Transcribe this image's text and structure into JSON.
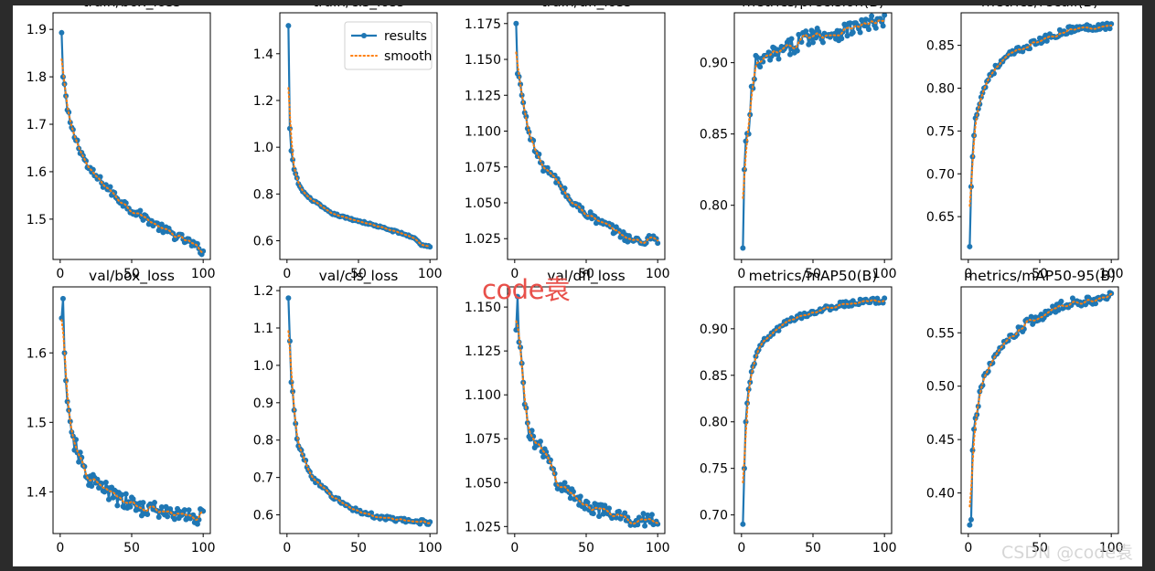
{
  "watermark": "code袁",
  "credit": "CSDN @code袁",
  "colors": {
    "results": "#1f77b4",
    "smooth": "#ff7f0e"
  },
  "legend": {
    "results_label": "results",
    "smooth_label": "smooth"
  },
  "chart_data": [
    {
      "type": "line",
      "title": "train/box_loss",
      "legend": false,
      "xlim": [
        -5,
        105
      ],
      "ylim": [
        1.415,
        1.935
      ],
      "xticks": [
        0,
        50,
        100
      ],
      "yticks": [
        1.5,
        1.6,
        1.7,
        1.8,
        1.9
      ],
      "x_range": [
        1,
        100
      ],
      "anchors": [
        [
          1,
          1.893
        ],
        [
          2,
          1.8
        ],
        [
          3,
          1.785
        ],
        [
          5,
          1.73
        ],
        [
          8,
          1.69
        ],
        [
          10,
          1.675
        ],
        [
          15,
          1.64
        ],
        [
          20,
          1.605
        ],
        [
          30,
          1.575
        ],
        [
          40,
          1.545
        ],
        [
          50,
          1.52
        ],
        [
          60,
          1.502
        ],
        [
          70,
          1.482
        ],
        [
          80,
          1.466
        ],
        [
          90,
          1.452
        ],
        [
          100,
          1.432
        ]
      ],
      "noise": 0.009
    },
    {
      "type": "line",
      "title": "train/cls_loss",
      "legend": true,
      "legend_position": "upper right",
      "xlim": [
        -5,
        105
      ],
      "ylim": [
        0.52,
        1.575
      ],
      "xticks": [
        0,
        50,
        100
      ],
      "yticks": [
        0.6,
        0.8,
        1.0,
        1.2,
        1.4
      ],
      "x_range": [
        1,
        100
      ],
      "anchors": [
        [
          1,
          1.52
        ],
        [
          2,
          1.08
        ],
        [
          3,
          0.985
        ],
        [
          5,
          0.905
        ],
        [
          8,
          0.845
        ],
        [
          10,
          0.82
        ],
        [
          15,
          0.785
        ],
        [
          20,
          0.765
        ],
        [
          30,
          0.72
        ],
        [
          40,
          0.7
        ],
        [
          50,
          0.685
        ],
        [
          60,
          0.668
        ],
        [
          70,
          0.65
        ],
        [
          80,
          0.632
        ],
        [
          90,
          0.61
        ],
        [
          93,
          0.585
        ],
        [
          100,
          0.575
        ]
      ],
      "noise": 0.004
    },
    {
      "type": "line",
      "title": "train/dfl_loss",
      "legend": false,
      "xlim": [
        -5,
        105
      ],
      "ylim": [
        1.0105,
        1.1825
      ],
      "xticks": [
        0,
        50,
        100
      ],
      "yticks": [
        1.025,
        1.05,
        1.075,
        1.1,
        1.125,
        1.15,
        1.175
      ],
      "x_range": [
        1,
        100
      ],
      "anchors": [
        [
          1,
          1.175
        ],
        [
          2,
          1.14
        ],
        [
          3,
          1.138
        ],
        [
          5,
          1.125
        ],
        [
          8,
          1.108
        ],
        [
          10,
          1.1
        ],
        [
          15,
          1.085
        ],
        [
          20,
          1.075
        ],
        [
          30,
          1.065
        ],
        [
          40,
          1.05
        ],
        [
          50,
          1.043
        ],
        [
          60,
          1.036
        ],
        [
          70,
          1.031
        ],
        [
          80,
          1.025
        ],
        [
          90,
          1.022
        ],
        [
          95,
          1.027
        ],
        [
          100,
          1.024
        ]
      ],
      "noise": 0.003
    },
    {
      "type": "line",
      "title": "metrics/precision(B)",
      "legend": false,
      "xlim": [
        -5,
        105
      ],
      "ylim": [
        0.762,
        0.935
      ],
      "xticks": [
        0,
        50,
        100
      ],
      "yticks": [
        0.8,
        0.85,
        0.9
      ],
      "x_range": [
        1,
        100
      ],
      "anchors": [
        [
          1,
          0.77
        ],
        [
          2,
          0.825
        ],
        [
          3,
          0.845
        ],
        [
          5,
          0.85
        ],
        [
          7,
          0.88
        ],
        [
          9,
          0.885
        ],
        [
          10,
          0.9
        ],
        [
          15,
          0.9
        ],
        [
          20,
          0.905
        ],
        [
          30,
          0.908
        ],
        [
          40,
          0.915
        ],
        [
          50,
          0.92
        ],
        [
          60,
          0.92
        ],
        [
          70,
          0.922
        ],
        [
          80,
          0.925
        ],
        [
          90,
          0.927
        ],
        [
          100,
          0.928
        ]
      ],
      "noise": 0.006
    },
    {
      "type": "line",
      "title": "metrics/recall(B)",
      "legend": false,
      "xlim": [
        -5,
        105
      ],
      "ylim": [
        0.6,
        0.888
      ],
      "xticks": [
        0,
        50,
        100
      ],
      "yticks": [
        0.65,
        0.7,
        0.75,
        0.8,
        0.85
      ],
      "x_range": [
        1,
        100
      ],
      "anchors": [
        [
          1,
          0.615
        ],
        [
          2,
          0.685
        ],
        [
          3,
          0.72
        ],
        [
          5,
          0.765
        ],
        [
          8,
          0.785
        ],
        [
          10,
          0.795
        ],
        [
          15,
          0.815
        ],
        [
          20,
          0.825
        ],
        [
          30,
          0.84
        ],
        [
          40,
          0.848
        ],
        [
          50,
          0.855
        ],
        [
          60,
          0.862
        ],
        [
          70,
          0.868
        ],
        [
          80,
          0.87
        ],
        [
          90,
          0.872
        ],
        [
          100,
          0.873
        ]
      ],
      "noise": 0.004
    },
    {
      "type": "line",
      "title": "val/box_loss",
      "legend": false,
      "xlim": [
        -5,
        105
      ],
      "ylim": [
        1.34,
        1.695
      ],
      "xticks": [
        0,
        50,
        100
      ],
      "yticks": [
        1.4,
        1.5,
        1.6
      ],
      "x_range": [
        1,
        100
      ],
      "anchors": [
        [
          1,
          1.65
        ],
        [
          2,
          1.678
        ],
        [
          3,
          1.6
        ],
        [
          4,
          1.56
        ],
        [
          5,
          1.53
        ],
        [
          7,
          1.49
        ],
        [
          10,
          1.47
        ],
        [
          15,
          1.44
        ],
        [
          20,
          1.42
        ],
        [
          30,
          1.405
        ],
        [
          40,
          1.39
        ],
        [
          50,
          1.382
        ],
        [
          60,
          1.376
        ],
        [
          70,
          1.372
        ],
        [
          80,
          1.368
        ],
        [
          90,
          1.366
        ],
        [
          100,
          1.364
        ]
      ],
      "noise": 0.012
    },
    {
      "type": "line",
      "title": "val/cls_loss",
      "legend": false,
      "xlim": [
        -5,
        105
      ],
      "ylim": [
        0.55,
        1.21
      ],
      "xticks": [
        0,
        50,
        100
      ],
      "yticks": [
        0.6,
        0.7,
        0.8,
        0.9,
        1.0,
        1.1,
        1.2
      ],
      "x_range": [
        1,
        100
      ],
      "anchors": [
        [
          1,
          1.18
        ],
        [
          2,
          1.065
        ],
        [
          3,
          0.955
        ],
        [
          4,
          0.93
        ],
        [
          5,
          0.88
        ],
        [
          7,
          0.8
        ],
        [
          10,
          0.77
        ],
        [
          15,
          0.72
        ],
        [
          20,
          0.69
        ],
        [
          30,
          0.655
        ],
        [
          40,
          0.628
        ],
        [
          50,
          0.61
        ],
        [
          60,
          0.598
        ],
        [
          70,
          0.59
        ],
        [
          80,
          0.585
        ],
        [
          90,
          0.582
        ],
        [
          100,
          0.58
        ]
      ],
      "noise": 0.006
    },
    {
      "type": "line",
      "title": "val/dfl_loss",
      "legend": false,
      "xlim": [
        -5,
        105
      ],
      "ylim": [
        1.021,
        1.1615
      ],
      "xticks": [
        0,
        50,
        100
      ],
      "yticks": [
        1.025,
        1.05,
        1.075,
        1.1,
        1.125,
        1.15
      ],
      "x_range": [
        1,
        100
      ],
      "anchors": [
        [
          1,
          1.137
        ],
        [
          2,
          1.156
        ],
        [
          3,
          1.13
        ],
        [
          5,
          1.118
        ],
        [
          7,
          1.095
        ],
        [
          10,
          1.08
        ],
        [
          15,
          1.072
        ],
        [
          20,
          1.068
        ],
        [
          25,
          1.06
        ],
        [
          30,
          1.05
        ],
        [
          40,
          1.043
        ],
        [
          50,
          1.038
        ],
        [
          60,
          1.034
        ],
        [
          70,
          1.031
        ],
        [
          80,
          1.029
        ],
        [
          90,
          1.029
        ],
        [
          100,
          1.029
        ]
      ],
      "noise": 0.004
    },
    {
      "type": "line",
      "title": "metrics/mAP50(B)",
      "legend": false,
      "xlim": [
        -5,
        105
      ],
      "ylim": [
        0.68,
        0.945
      ],
      "xticks": [
        0,
        50,
        100
      ],
      "yticks": [
        0.7,
        0.75,
        0.8,
        0.85,
        0.9
      ],
      "x_range": [
        1,
        100
      ],
      "anchors": [
        [
          1,
          0.69
        ],
        [
          2,
          0.75
        ],
        [
          3,
          0.8
        ],
        [
          5,
          0.835
        ],
        [
          8,
          0.86
        ],
        [
          10,
          0.87
        ],
        [
          15,
          0.885
        ],
        [
          20,
          0.893
        ],
        [
          30,
          0.905
        ],
        [
          40,
          0.913
        ],
        [
          50,
          0.918
        ],
        [
          60,
          0.922
        ],
        [
          70,
          0.926
        ],
        [
          80,
          0.928
        ],
        [
          90,
          0.93
        ],
        [
          100,
          0.93
        ]
      ],
      "noise": 0.003
    },
    {
      "type": "line",
      "title": "metrics/mAP50-95(B)",
      "legend": false,
      "xlim": [
        -5,
        105
      ],
      "ylim": [
        0.362,
        0.593
      ],
      "xticks": [
        0,
        50,
        100
      ],
      "yticks": [
        0.4,
        0.45,
        0.5,
        0.55
      ],
      "x_range": [
        1,
        100
      ],
      "anchors": [
        [
          1,
          0.37
        ],
        [
          2,
          0.375
        ],
        [
          3,
          0.44
        ],
        [
          5,
          0.47
        ],
        [
          8,
          0.49
        ],
        [
          10,
          0.505
        ],
        [
          15,
          0.52
        ],
        [
          20,
          0.53
        ],
        [
          30,
          0.545
        ],
        [
          40,
          0.557
        ],
        [
          50,
          0.565
        ],
        [
          60,
          0.572
        ],
        [
          70,
          0.577
        ],
        [
          80,
          0.58
        ],
        [
          90,
          0.582
        ],
        [
          100,
          0.584
        ]
      ],
      "noise": 0.005
    }
  ]
}
